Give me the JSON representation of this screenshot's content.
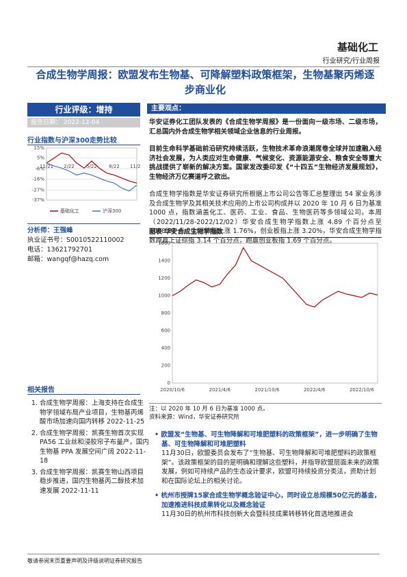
{
  "header": {
    "sector": "基础化工",
    "category": "行业研究/行业周报"
  },
  "title": "合成生物学周报：欧盟发布生物基、可降解塑料政策框架，生物基聚丙烯逐步商业化",
  "rating": "行业评级：增持",
  "report_date": {
    "label": "报告日期：",
    "value": "2022-12-04"
  },
  "index_section": "行业指数与沪深300走势比较",
  "analyst": [
    "分析师：王强峰",
    "执业证书号：S0010522110002",
    "电话：13621792701",
    "邮箱：wangqf@hazq.com"
  ],
  "related": {
    "title": "相关报告",
    "items": [
      "合成生物学周报：上海支持在合成生物学领域布局产业项目，生物基丙烯酸市场加速向国内转移 2022-11-25",
      "合成生物学周报：凯赛生物首次实现 PA56 工业丝和浸胶帘子布量产，国内生物基 PPA 发展空间广阔 2022-11-18",
      "合成生物学周报：凯赛生物山西项目稳步推进，国内生物基丙二醇技术加速发展 2022-11-11"
    ]
  },
  "main_title": "主要观点：",
  "paragraphs": [
    "华安证券化工团队发表的《合成生物学周报》是一份面向一级市场、二级市场，汇总国内外合成生物学相关领域企业信息的行业周报。",
    "目前生命科学基础前沿研究持续活跃，生物技术革命浪潮席卷全球并加速融入经济社会发展，为人类应对生命健康、气候变化、资源能源安全、粮食安全等重大挑战提供了崭新的解决方案。国家发改委印发《“十四五”生物经济发展规划》，生物经济万亿赛道呼之欲出。",
    "合成生物学指数是华安证券研究所根据上市公司公告等汇总整理出 54 家业务涉及合成生物学及其相关技术应用的上市公司构成并以 2020 年 10 月 6 日为基准 1000 点，指数涵盖化工、医药、工业、食品、生物医药等多领域公司。本周（2022/11/28-2022/12/02）华安合成生物学指数上涨 4.89 个百分点至 1008.87 点。上证综指上涨 1.76%，创业板指上涨 3.20%，华安合成生物学指数跑赢上证综指 3.14 个百分点，跑赢创业板指 1.69 个百分点。"
  ],
  "figure_note": [
    "注：以 2020 年 10 月 6 日为基准 1000 点。",
    "资料来源：Wind，华安证券研究所"
  ],
  "bullets": [
    {
      "heading": "欧盟发“生物基、可生物降解和可堆肥塑料的政策框架”，进一步明确了生物基、可生物降解和可堆肥塑料",
      "body": "11月30日，欧盟委员会发布了“生物基、可生物降解和可堆肥塑料的政策框架”。该政策框架的目的是明确和理解这些塑料，并指导欧盟层面未来的政策发展，例如可持续产品的生态设计要求，欧盟可持续投资分类法，资助计划和在国际论坛上的相关讨论。"
    },
    {
      "heading": "杭州市授牌15家合成生物学概念验证中心，同时设立总规模50亿元的基金，加速推进科技成果转化以及概念验证",
      "body": "11月30日的杭州市科技创新大会暨科技成果转移转化首选地推进会"
    }
  ],
  "footer": "敬请参阅末页重要声明及评级说明证券研究报告",
  "chart_data": [
    {
      "type": "line",
      "categories": [
        "11/21",
        null,
        null,
        "2/22",
        null,
        null,
        "5/22",
        null,
        null,
        "8/22",
        null,
        null,
        "11/22"
      ],
      "series": [
        {
          "name": "基础化工",
          "color": "#c00000",
          "values": [
            0,
            5,
            10,
            8,
            0,
            -5,
            2,
            -5,
            -10,
            -12,
            -15,
            -18,
            -20
          ]
        },
        {
          "name": "沪深300",
          "color": "#4472c4",
          "values": [
            0,
            -3,
            -5,
            -8,
            -12,
            -10,
            -12,
            -15,
            -18,
            -20,
            -25,
            -28,
            -22
          ]
        }
      ],
      "ylim": [
        -37,
        15
      ],
      "yticks": [
        {
          "value": 15,
          "label": "15%"
        },
        {
          "value": 5,
          "label": "5%"
        },
        {
          "value": -6,
          "label": "-6%"
        },
        {
          "value": -16,
          "label": "-16%"
        },
        {
          "value": -27,
          "label": "-27%"
        },
        {
          "value": -37,
          "label": "-37%"
        }
      ],
      "grid": true
    },
    {
      "type": "line",
      "title": "图表 华安合成生物学指数",
      "categories": [
        "2020/10/6",
        null,
        null,
        null,
        null,
        null,
        "2021/4/6",
        null,
        null,
        null,
        null,
        null,
        "2021/10/6",
        null,
        null,
        null,
        null,
        null,
        "2022/4/6",
        null,
        null,
        null,
        null,
        null,
        "2022/10/6",
        null,
        null
      ],
      "series": [
        {
          "color": "#c00000",
          "values": [
            1000,
            1050,
            1120,
            1180,
            1150,
            1100,
            1130,
            1250,
            1350,
            1550,
            1400,
            1350,
            1300,
            1250,
            1200,
            1100,
            1000,
            900,
            870,
            950,
            1000,
            1050,
            1020,
            1000,
            980,
            1030,
            1008
          ]
        }
      ],
      "ylim": [
        0,
        1600
      ],
      "yticks": [
        0,
        200,
        400,
        600,
        800,
        1000,
        1200,
        1400,
        1600
      ],
      "grid": false
    }
  ]
}
